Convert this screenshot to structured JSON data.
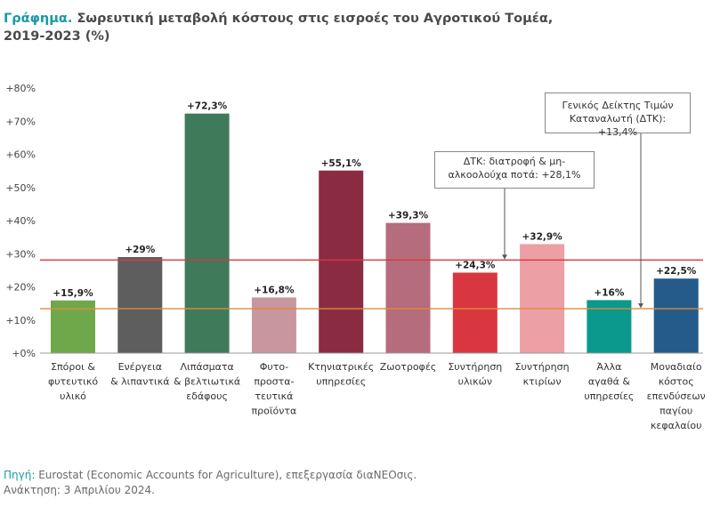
{
  "title": {
    "lead": "Γράφημα.",
    "text": " Σωρευτική μεταβολή κόστους στις εισροές του Αγροτικού Τομέα,",
    "line2": "2019-2023 (%)"
  },
  "chart_data": {
    "type": "bar",
    "categories": [
      [
        "Σπόροι &",
        "φυτευτικό",
        "υλικό"
      ],
      [
        "Ενέργεια",
        "& λιπαντικά"
      ],
      [
        "Λιπάσματα",
        "& βελτιωτικά",
        "εδάφους"
      ],
      [
        "Φυτο-",
        "προστα-",
        "τευτικά",
        "προϊόντα"
      ],
      [
        "Κτηνιατρικές",
        "υπηρεσίες"
      ],
      [
        "Ζωοτροφές"
      ],
      [
        "Συντήρηση",
        "υλικών"
      ],
      [
        "Συντήρηση",
        "κτιρίων"
      ],
      [
        "Άλλα",
        "αγαθά &",
        "υπηρεσίες"
      ],
      [
        "Μοναδιαίο",
        "κόστος",
        "επενδύσεων",
        "παγίου",
        "κεφαλαίου"
      ]
    ],
    "values": [
      15.9,
      29,
      72.3,
      16.8,
      55.1,
      39.3,
      24.3,
      32.9,
      16,
      22.5
    ],
    "data_labels": [
      "+15,9%",
      "+29%",
      "+72,3%",
      "+16,8%",
      "+55,1%",
      "+39,3%",
      "+24,3%",
      "+32,9%",
      "+16%",
      "+22,5%"
    ],
    "colors": [
      "#6fa84b",
      "#5e5e5e",
      "#3f7a5a",
      "#c8969f",
      "#8b2b42",
      "#b56c7c",
      "#d9373f",
      "#eca0a5",
      "#0b998d",
      "#245b8b"
    ],
    "ylim": [
      0,
      80
    ],
    "yticks": [
      0,
      10,
      20,
      30,
      40,
      50,
      60,
      70,
      80
    ],
    "ytick_labels": [
      "+0%",
      "+10%",
      "+20%",
      "+30%",
      "+40%",
      "+50%",
      "+60%",
      "+70%",
      "+80%"
    ],
    "grid": false,
    "reference_lines": [
      {
        "value": 28.1,
        "color": "#d9373f",
        "label": "ΔΤΚ: διατροφή & μη-αλκοολούχα ποτά: +28,1%",
        "label_lines": [
          "ΔΤΚ: διατροφή & μη-",
          "αλκοολούχα ποτά: +28,1%"
        ]
      },
      {
        "value": 13.4,
        "color": "#e08a3c",
        "label": "Γενικός Δείκτης Τιμών Καταναλωτή (ΔΤΚ): +13,4%",
        "label_lines": [
          "Γενικός Δείκτης Τιμών",
          "Καταναλωτή (ΔΤΚ): +13,4%"
        ]
      }
    ]
  },
  "footer": {
    "lead": "Πηγή:",
    "source": " Eurostat (Economic Accounts for Agriculture), επεξεργασία διαNEOσις.",
    "retrieved": "Ανάκτηση: 3 Απριλίου 2024."
  }
}
